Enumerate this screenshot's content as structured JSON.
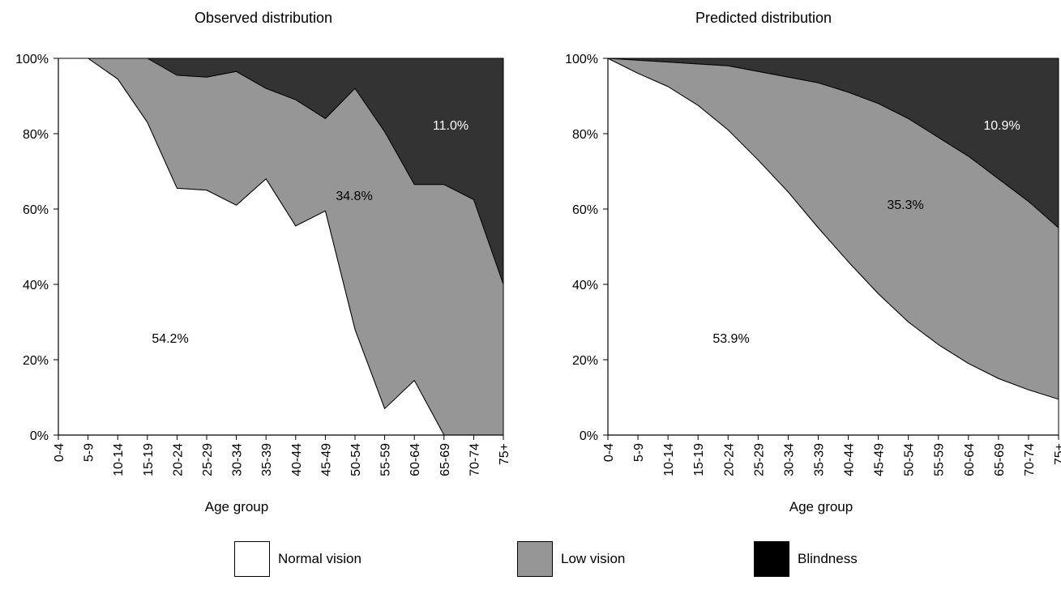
{
  "chart_data": [
    {
      "type": "area",
      "stacked": true,
      "normalized": true,
      "title": "Observed distribution",
      "xlabel": "Age group",
      "ylabel": "",
      "ylim": [
        0,
        100
      ],
      "yticks": [
        "0%",
        "20%",
        "40%",
        "60%",
        "80%",
        "100%"
      ],
      "categories": [
        "0-4",
        "5-9",
        "10-14",
        "15-19",
        "20-24",
        "25-29",
        "30-34",
        "35-39",
        "40-44",
        "45-49",
        "50-54",
        "55-59",
        "60-64",
        "65-69",
        "70-74",
        "75+"
      ],
      "series": [
        {
          "name": "Normal vision",
          "color": "#ffffff",
          "values": [
            100,
            100,
            94.5,
            83,
            65.5,
            65,
            61,
            68,
            55.5,
            59.5,
            28,
            7,
            14.5,
            0,
            0,
            0
          ]
        },
        {
          "name": "Low vision",
          "color": "#969696",
          "values": [
            0,
            0,
            5.5,
            17,
            30,
            30,
            35.5,
            24,
            33.5,
            24.5,
            64,
            73.5,
            52,
            66.5,
            62.5,
            40
          ]
        },
        {
          "name": "Blindness",
          "color": "#333333",
          "values": [
            0,
            0,
            0,
            0,
            4.5,
            5,
            3.5,
            8,
            11,
            16,
            8,
            19.5,
            33.5,
            33.5,
            37.5,
            60
          ]
        }
      ],
      "annotations": [
        "54.2%",
        "34.8%",
        "11.0%"
      ]
    },
    {
      "type": "area",
      "stacked": true,
      "normalized": true,
      "title": "Predicted distribution",
      "xlabel": "Age group",
      "ylabel": "",
      "ylim": [
        0,
        100
      ],
      "yticks": [
        "0%",
        "20%",
        "40%",
        "60%",
        "80%",
        "100%"
      ],
      "categories": [
        "0-4",
        "5-9",
        "10-14",
        "15-19",
        "20-24",
        "25-29",
        "30-34",
        "35-39",
        "40-44",
        "45-49",
        "50-54",
        "55-59",
        "60-64",
        "65-69",
        "70-74",
        "75+"
      ],
      "series": [
        {
          "name": "Normal vision",
          "color": "#ffffff",
          "values": [
            100,
            96,
            92.5,
            87.5,
            81,
            73,
            64.5,
            55,
            46,
            37.5,
            30,
            24,
            19,
            15,
            12,
            9.5
          ]
        },
        {
          "name": "Low vision",
          "color": "#969696",
          "values": [
            0,
            3.5,
            6.5,
            11,
            17,
            23.5,
            30.5,
            38.5,
            45,
            50.5,
            54,
            55,
            55,
            53,
            50,
            45.5
          ]
        },
        {
          "name": "Blindness",
          "color": "#333333",
          "values": [
            0,
            0.5,
            1,
            1.5,
            2,
            3.5,
            5,
            6.5,
            9,
            12,
            16,
            21,
            26,
            32,
            38,
            45
          ]
        }
      ],
      "annotations": [
        "53.9%",
        "35.3%",
        "10.9%"
      ]
    }
  ],
  "legend": {
    "items": [
      {
        "label": "Normal vision",
        "color": "#ffffff"
      },
      {
        "label": "Low vision",
        "color": "#969696"
      },
      {
        "label": "Blindness",
        "color": "#000000"
      }
    ]
  }
}
